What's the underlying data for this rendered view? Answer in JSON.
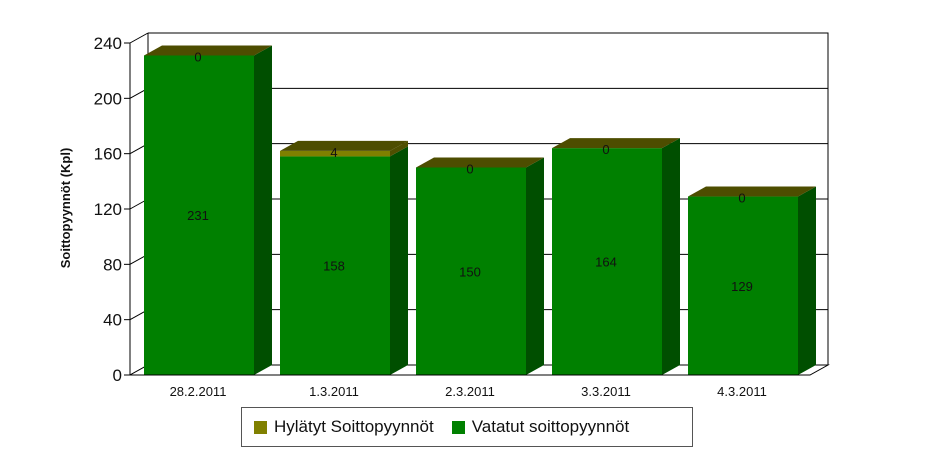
{
  "chart_data": {
    "type": "bar",
    "stacked": true,
    "three_d": true,
    "categories": [
      "28.2.2011",
      "1.3.2011",
      "2.3.2011",
      "3.3.2011",
      "4.3.2011"
    ],
    "series": [
      {
        "name": "Vatatut soittopyynnöt",
        "values": [
          231,
          158,
          150,
          164,
          129
        ],
        "color": "#008000"
      },
      {
        "name": "Hylätyt Soittopyynnöt",
        "values": [
          0,
          4,
          0,
          0,
          0
        ],
        "color": "#808000"
      }
    ],
    "ylabel": "Soittopyynnöt (Kpl)",
    "xlabel": "",
    "ylim": [
      0,
      240
    ],
    "yticks": [
      0,
      40,
      80,
      120,
      160,
      200,
      240
    ],
    "grid": true,
    "legend_position": "bottom"
  },
  "legend": {
    "items": [
      {
        "label": "Hylätyt Soittopyynnöt",
        "color": "#808000"
      },
      {
        "label": "Vatatut soittopyynnöt",
        "color": "#008000"
      }
    ]
  }
}
